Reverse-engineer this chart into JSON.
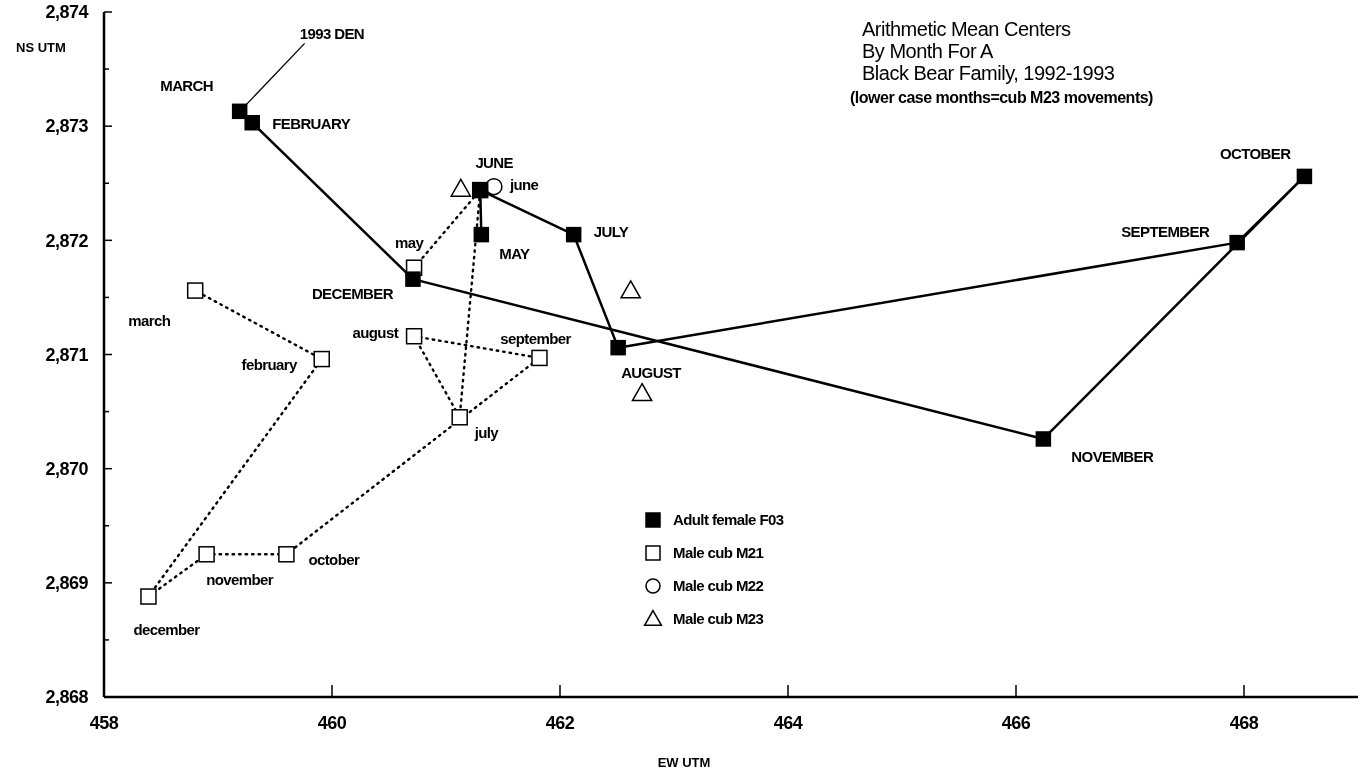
{
  "chart_data": {
    "type": "line",
    "title": "Arithmetic Mean Centers\nBy Month For A\nBlack Bear Family, 1992-1993",
    "subtitle": "(lower case months=cub M23 movements)",
    "xlabel": "EW UTM",
    "ylabel": "NS UTM",
    "xlim": [
      458,
      469
    ],
    "ylim": [
      2868,
      2874
    ],
    "xticks": [
      458,
      460,
      462,
      464,
      466,
      468
    ],
    "yticks": [
      {
        "value": 2868,
        "label": "2,868"
      },
      {
        "value": 2868.5,
        "label": null
      },
      {
        "value": 2869,
        "label": "2,869"
      },
      {
        "value": 2869.5,
        "label": null
      },
      {
        "value": 2870,
        "label": "2,870"
      },
      {
        "value": 2870.5,
        "label": null
      },
      {
        "value": 2871,
        "label": "2,871"
      },
      {
        "value": 2871.5,
        "label": null
      },
      {
        "value": 2872,
        "label": "2,872"
      },
      {
        "value": 2872.5,
        "label": null
      },
      {
        "value": 2873,
        "label": "2,873"
      },
      {
        "value": 2873.5,
        "label": null
      },
      {
        "value": 2874,
        "label": "2,874"
      }
    ],
    "grid": false,
    "legend": "bottom",
    "series": [
      {
        "name": "Adult female F03",
        "type": "line",
        "color": "#000000",
        "marker": "square",
        "line_style": "solid",
        "x": [
          461.31,
          461.3,
          462.12,
          462.51,
          467.94,
          468.53,
          466.24,
          460.71,
          459.3,
          459.19
        ],
        "values": [
          2872.05,
          2872.44,
          2872.05,
          2871.06,
          2871.98,
          2872.56,
          2870.26,
          2871.66,
          2873.03,
          2873.13
        ]
      },
      {
        "name": "Male cub M21",
        "type": "line",
        "color": "#000000",
        "marker": "square",
        "line_style": "dotted",
        "x": [
          460.72,
          461.3,
          461.12,
          460.72,
          461.82,
          459.6,
          458.9,
          458.39,
          459.91,
          458.8
        ],
        "values": [
          2871.76,
          2872.44,
          2870.45,
          2871.16,
          2870.97,
          2869.25,
          2869.25,
          2868.88,
          2870.96,
          2871.56
        ]
      },
      {
        "name": "Male cub M22",
        "type": "scatter",
        "color": "#000000",
        "marker": "circle",
        "x": [
          461.42
        ],
        "values": [
          2872.47
        ]
      },
      {
        "name": "Male cub M23",
        "type": "scatter",
        "color": "#000000",
        "marker": "triangle",
        "x": [
          461.13,
          462.62,
          462.72
        ],
        "values": [
          2872.45,
          2871.56,
          2870.66
        ]
      }
    ],
    "annotations": [
      {
        "text": "1993 DEN",
        "x": 459.19,
        "y": 2873.13
      },
      {
        "text": "MARCH",
        "x": 459.19,
        "y": 2873.13
      },
      {
        "text": "FEBRUARY",
        "x": 459.3,
        "y": 2873.03
      },
      {
        "text": "JUNE",
        "x": 461.3,
        "y": 2872.44
      },
      {
        "text": "MAY",
        "x": 461.31,
        "y": 2872.05
      },
      {
        "text": "JULY",
        "x": 462.12,
        "y": 2872.05
      },
      {
        "text": "DECEMBER",
        "x": 460.71,
        "y": 2871.66
      },
      {
        "text": "AUGUST",
        "x": 462.51,
        "y": 2871.06
      },
      {
        "text": "SEPTEMBER",
        "x": 467.94,
        "y": 2871.98
      },
      {
        "text": "OCTOBER",
        "x": 468.53,
        "y": 2872.56
      },
      {
        "text": "NOVEMBER",
        "x": 466.24,
        "y": 2870.26
      },
      {
        "text": "june",
        "x": 461.42,
        "y": 2872.47
      },
      {
        "text": "may",
        "x": 460.72,
        "y": 2871.76
      },
      {
        "text": "march",
        "x": 458.8,
        "y": 2871.56
      },
      {
        "text": "february",
        "x": 459.91,
        "y": 2870.96
      },
      {
        "text": "august",
        "x": 460.72,
        "y": 2871.16
      },
      {
        "text": "september",
        "x": 461.82,
        "y": 2870.97
      },
      {
        "text": "july",
        "x": 461.12,
        "y": 2870.45
      },
      {
        "text": "october",
        "x": 459.6,
        "y": 2869.25
      },
      {
        "text": "november",
        "x": 458.9,
        "y": 2869.25
      },
      {
        "text": "december",
        "x": 458.39,
        "y": 2868.88
      }
    ]
  }
}
